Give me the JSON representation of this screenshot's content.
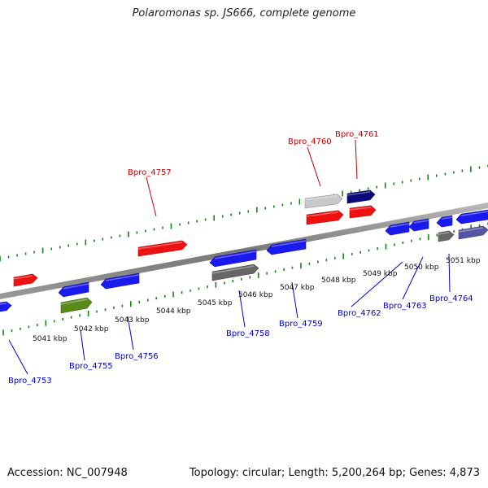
{
  "title": "Polaromonas sp. JS666, complete genome",
  "footer": {
    "accession": "Accession: NC_007948",
    "summary": "Topology: circular; Length: 5,200,264 bp; Genes: 4,873"
  },
  "colors": {
    "forward_gene": "#ee1111",
    "reverse_gene": "#1a1aee",
    "navy_gene": "#0a0a7a",
    "gray_gene": "#666666",
    "light_gray_gene": "#c8c8c8",
    "olive_gene": "#5a8a1a",
    "backbone": "#888888",
    "tick": "#118811",
    "label_forward": "#cc0000",
    "label_reverse": "#0000cc"
  },
  "kbp_labels": [
    "5041 kbp",
    "5042 kbp",
    "5043 kbp",
    "5044 kbp",
    "5045 kbp",
    "5046 kbp",
    "5047 kbp",
    "5048 kbp",
    "5049 kbp",
    "5050 kbp",
    "5051 kbp"
  ],
  "gene_labels": {
    "forward": [
      "Bpro_4757",
      "Bpro_4760",
      "Bpro_4761"
    ],
    "reverse": [
      "Bpro_4753",
      "Bpro_4755",
      "Bpro_4756",
      "Bpro_4758",
      "Bpro_4759",
      "Bpro_4762",
      "Bpro_4763",
      "Bpro_4764"
    ]
  }
}
